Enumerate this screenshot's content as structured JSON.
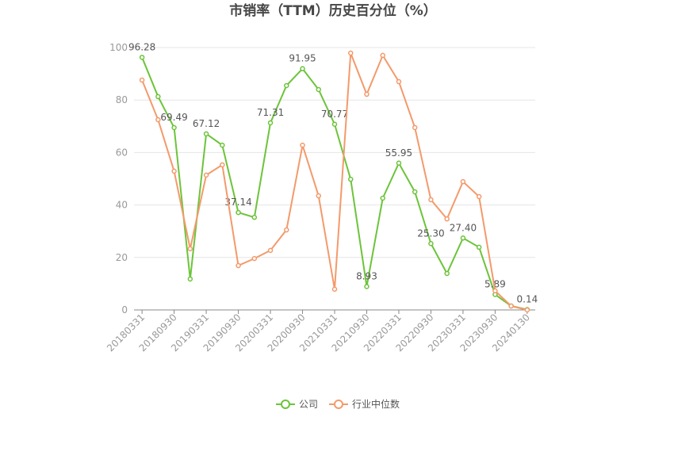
{
  "chart_data": {
    "type": "line",
    "title": "市销率（TTM）历史百分位（%）",
    "categories": [
      "20180331",
      null,
      "20180930",
      null,
      "20190331",
      null,
      "20190930",
      null,
      "20200331",
      null,
      "20200930",
      null,
      "20210331",
      null,
      "20210930",
      null,
      "20220331",
      null,
      "20220930",
      null,
      "20230331",
      null,
      "20230930",
      null,
      "20240130"
    ],
    "series": [
      {
        "name": "公司",
        "color": "#6cc43a",
        "values": [
          96.28,
          81.3,
          69.49,
          11.8,
          67.12,
          62.8,
          37.14,
          35.3,
          71.31,
          85.5,
          91.95,
          84,
          70.77,
          49.8,
          8.93,
          42.6,
          55.95,
          45,
          25.3,
          13.9,
          27.4,
          23.9,
          5.89,
          1.5,
          0.14
        ],
        "value_labels": [
          "96.28",
          null,
          "69.49",
          null,
          "67.12",
          null,
          "37.14",
          null,
          "71.31",
          null,
          "91.95",
          null,
          "70.77",
          null,
          "8.93",
          null,
          "55.95",
          null,
          "25.30",
          null,
          "27.40",
          null,
          "5.89",
          null,
          "0.14"
        ]
      },
      {
        "name": "行业中位数",
        "color": "#f39a6b",
        "values": [
          87.6,
          72.5,
          52.9,
          23.3,
          51.4,
          55.3,
          16.9,
          19.6,
          22.7,
          30.5,
          62.8,
          43.5,
          7.9,
          97.9,
          82.2,
          97,
          87,
          69.5,
          42,
          34.7,
          48.9,
          43.2,
          7.3,
          1.5,
          0
        ]
      }
    ],
    "ylim": [
      0,
      100
    ],
    "yticks": [
      0,
      20,
      40,
      60,
      80,
      100
    ],
    "grid": true,
    "legend": "bottom"
  }
}
